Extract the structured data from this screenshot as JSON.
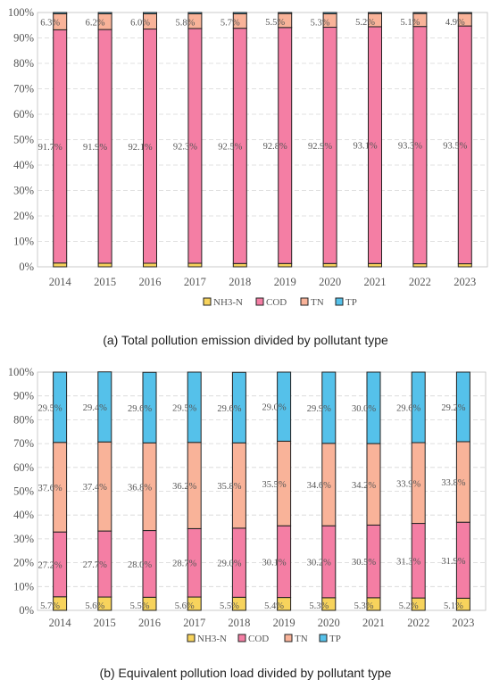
{
  "colors": {
    "NH3-N": "#f7d35c",
    "COD": "#f47ea4",
    "TN": "#f9b399",
    "TP": "#55c1ea",
    "stroke": "#222222",
    "grid": "#d6d6d6",
    "label": "#555555"
  },
  "chart_data": [
    {
      "type": "bar",
      "stacked": true,
      "caption": "(a) Total pollution emission divided by pollutant type",
      "categories": [
        "2014",
        "2015",
        "2016",
        "2017",
        "2018",
        "2019",
        "2020",
        "2021",
        "2022",
        "2023"
      ],
      "y_ticks": [
        "0%",
        "10%",
        "20%",
        "30%",
        "40%",
        "50%",
        "60%",
        "70%",
        "80%",
        "90%",
        "100%"
      ],
      "ylim": [
        0,
        100
      ],
      "legend": [
        "NH3-N",
        "COD",
        "TN",
        "TP"
      ],
      "legend_position": "bottom",
      "series": [
        {
          "name": "NH3-N",
          "values": [
            1.5,
            1.4,
            1.4,
            1.4,
            1.3,
            1.3,
            1.3,
            1.3,
            1.2,
            1.2
          ]
        },
        {
          "name": "COD",
          "values": [
            91.7,
            91.9,
            92.1,
            92.3,
            92.5,
            92.8,
            92.9,
            93.1,
            93.3,
            93.5
          ]
        },
        {
          "name": "TN",
          "values": [
            6.3,
            6.2,
            6.0,
            5.8,
            5.7,
            5.5,
            5.3,
            5.2,
            5.1,
            4.9
          ]
        },
        {
          "name": "TP",
          "values": [
            0.5,
            0.5,
            0.5,
            0.5,
            0.5,
            0.4,
            0.5,
            0.4,
            0.4,
            0.4
          ]
        }
      ],
      "data_labels": {
        "COD": [
          "91.7%",
          "91.9%",
          "92.1%",
          "92.3%",
          "92.5%",
          "92.8%",
          "92.9%",
          "93.1%",
          "93.3%",
          "93.5%"
        ],
        "TN": [
          "6.3%",
          "6.2%",
          "6.0%",
          "5.8%",
          "5.7%",
          "5.5%",
          "5.3%",
          "5.2%",
          "5.1%",
          "4.9%"
        ]
      }
    },
    {
      "type": "bar",
      "stacked": true,
      "caption": "(b) Equivalent pollution load divided by pollutant type",
      "categories": [
        "2014",
        "2015",
        "2016",
        "2017",
        "2018",
        "2019",
        "2020",
        "2021",
        "2022",
        "2023"
      ],
      "y_ticks": [
        "0%",
        "10%",
        "20%",
        "30%",
        "40%",
        "50%",
        "60%",
        "70%",
        "80%",
        "90%",
        "100%"
      ],
      "ylim": [
        0,
        100
      ],
      "legend": [
        "NH3-N",
        "COD",
        "TN",
        "TP"
      ],
      "legend_position": "bottom",
      "series": [
        {
          "name": "NH3-N",
          "values": [
            5.7,
            5.6,
            5.5,
            5.6,
            5.5,
            5.4,
            5.3,
            5.3,
            5.2,
            5.1
          ]
        },
        {
          "name": "COD",
          "values": [
            27.2,
            27.7,
            28.0,
            28.7,
            29.0,
            30.1,
            30.2,
            30.5,
            31.3,
            31.9
          ]
        },
        {
          "name": "TN",
          "values": [
            37.6,
            37.4,
            36.8,
            36.2,
            35.8,
            35.5,
            34.6,
            34.2,
            33.9,
            33.8
          ]
        },
        {
          "name": "TP",
          "values": [
            29.5,
            29.4,
            29.6,
            29.5,
            29.6,
            29.0,
            29.9,
            30.0,
            29.6,
            29.2
          ]
        }
      ],
      "data_labels": {
        "NH3-N": [
          "5.7%",
          "5.6%",
          "5.5%",
          "5.6%",
          "5.5%",
          "5.4%",
          "5.3%",
          "5.3%",
          "5.2%",
          "5.1%"
        ],
        "COD": [
          "27.2%",
          "27.7%",
          "28.0%",
          "28.7%",
          "29.0%",
          "30.1%",
          "30.2%",
          "30.5%",
          "31.3%",
          "31.9%"
        ],
        "TN": [
          "37.6%",
          "37.4%",
          "36.8%",
          "36.2%",
          "35.8%",
          "35.5%",
          "34.6%",
          "34.2%",
          "33.9%",
          "33.8%"
        ],
        "TP": [
          "29.5%",
          "29.4%",
          "29.6%",
          "29.5%",
          "29.6%",
          "29.0%",
          "29.9%",
          "30.0%",
          "29.6%",
          "29.2%"
        ]
      }
    }
  ]
}
